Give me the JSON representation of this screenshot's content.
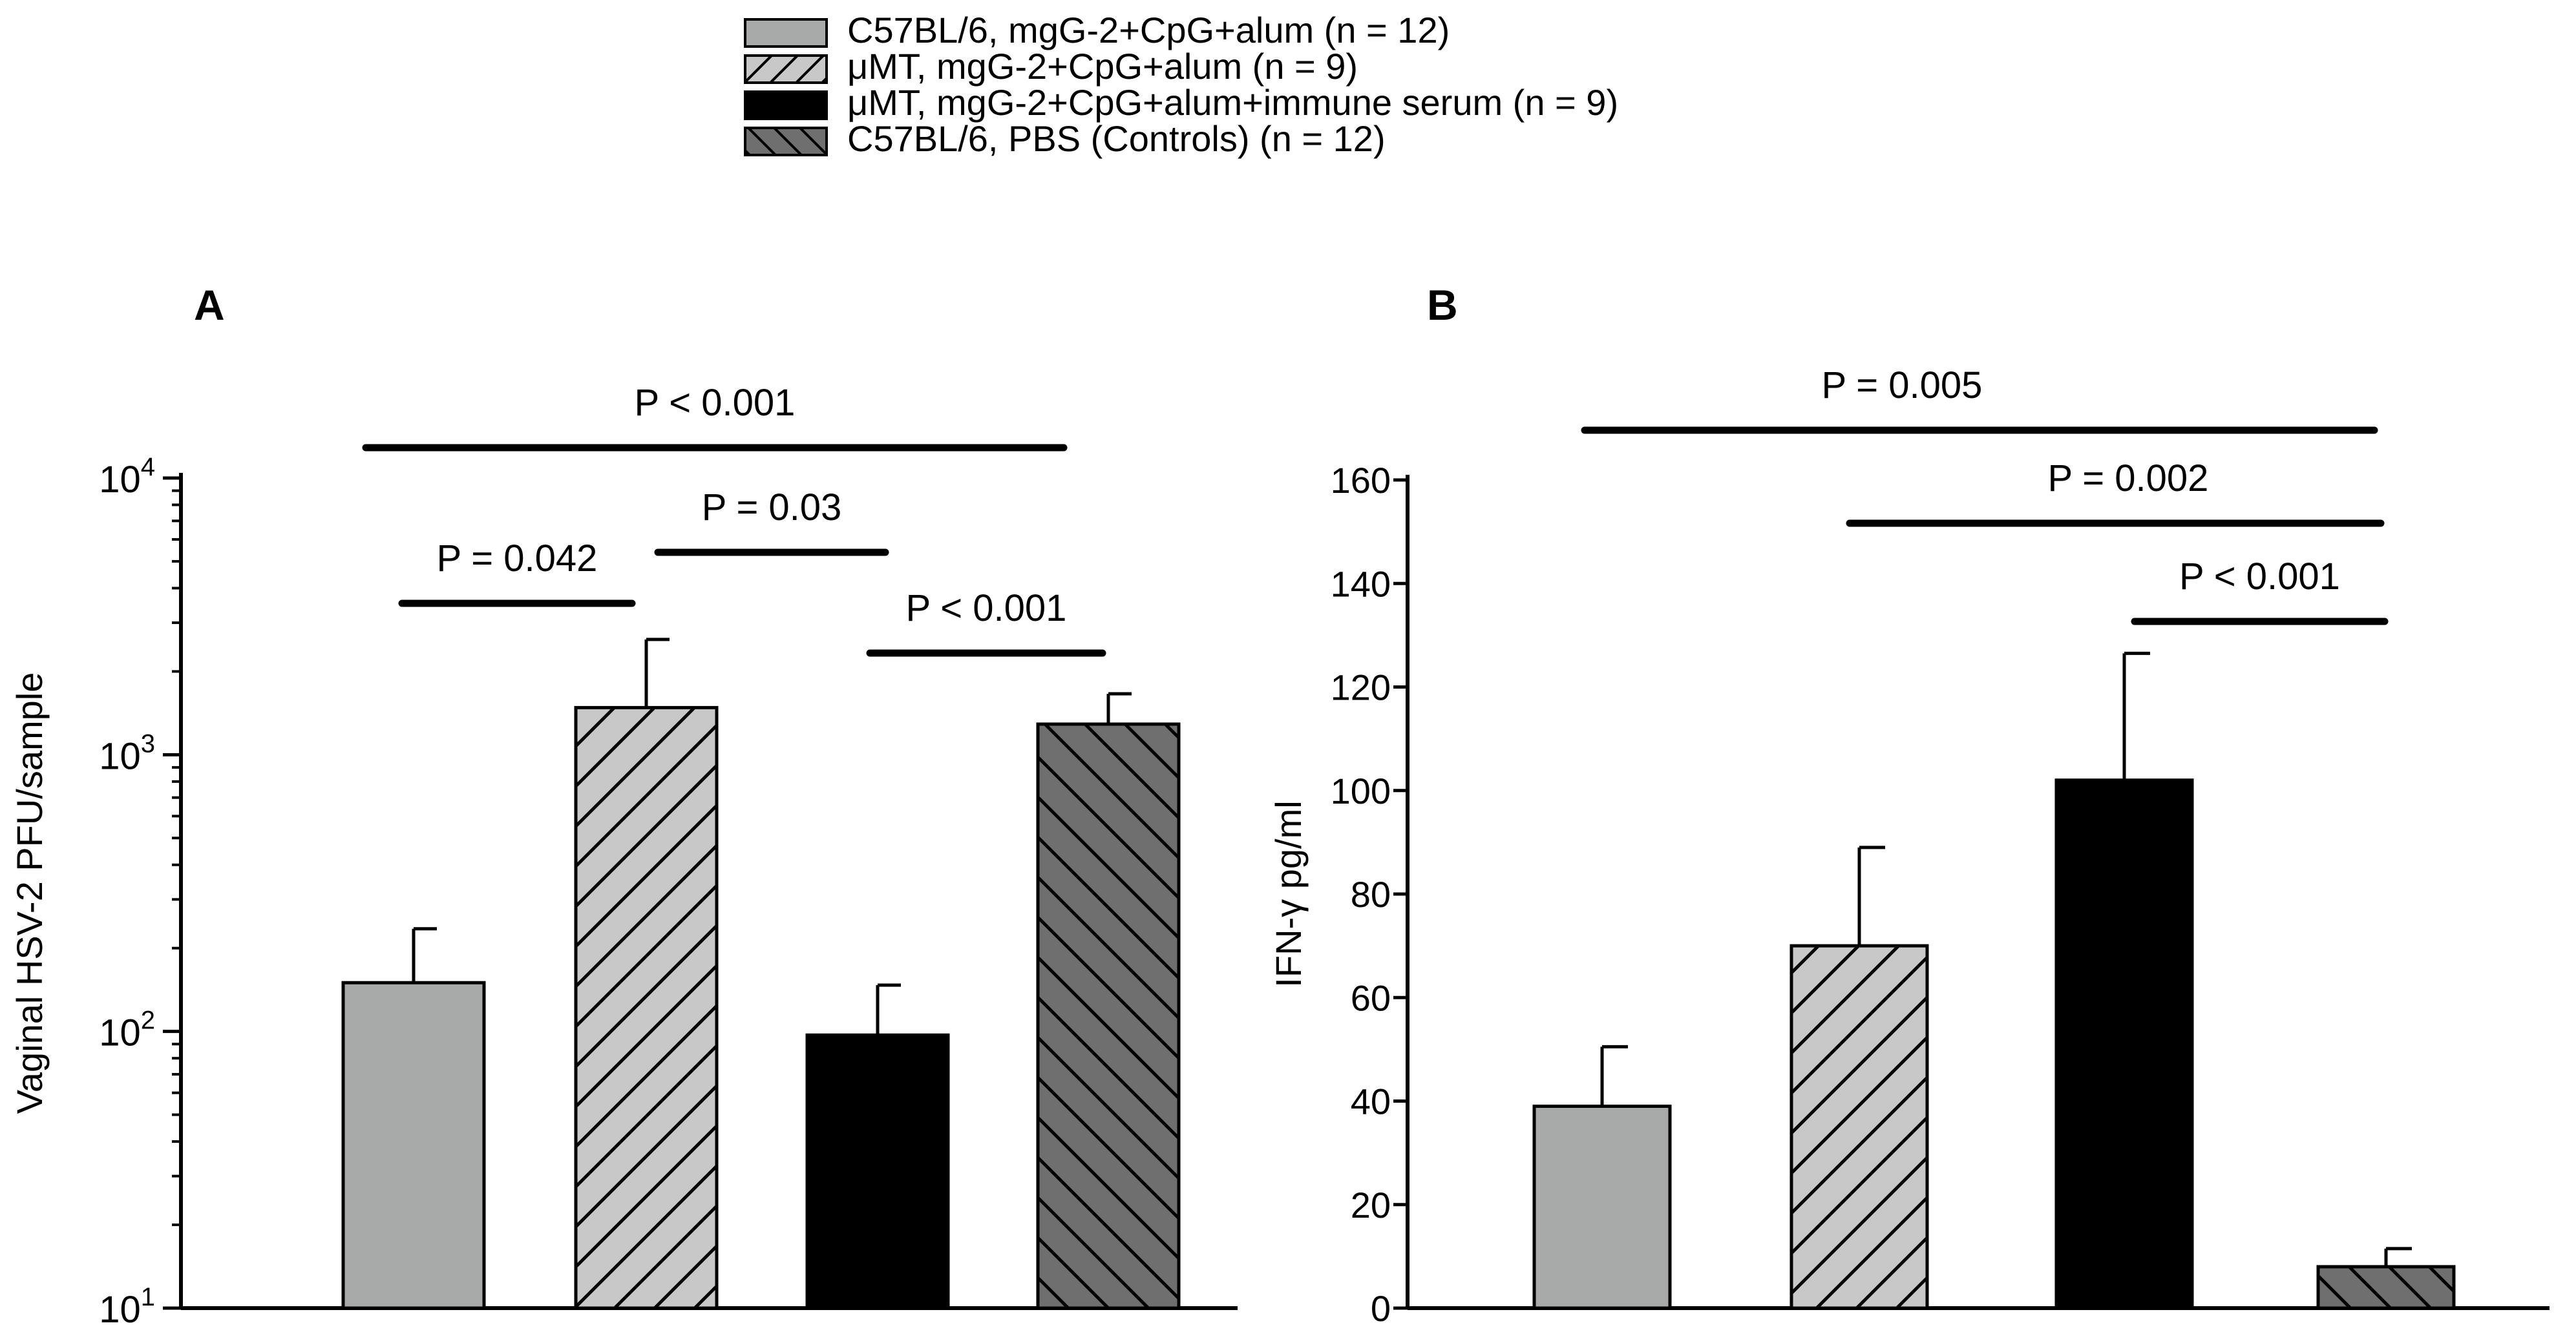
{
  "legend": [
    {
      "label": "C57BL/6, mgG-2+CpG+alum (n = 12)",
      "fill": "#a7aaa8",
      "pattern": "none"
    },
    {
      "label": "μMT, mgG-2+CpG+alum (n = 9)",
      "fill": "#c8c8c8",
      "pattern": "forward"
    },
    {
      "label": "μMT, mgG-2+CpG+alum+immune serum (n = 9)",
      "fill": "#000000",
      "pattern": "none"
    },
    {
      "label": "C57BL/6, PBS (Controls) (n = 12)",
      "fill": "#6f6f6f",
      "pattern": "back"
    }
  ],
  "chart_data": [
    {
      "panel": "A",
      "type": "bar",
      "yscale": "log",
      "ylabel": "Vaginal HSV-2 PFU/sample",
      "ylim": [
        10,
        10000
      ],
      "yticks": [
        {
          "value": 10,
          "base": "10",
          "exp": "1"
        },
        {
          "value": 100,
          "base": "10",
          "exp": "2"
        },
        {
          "value": 1000,
          "base": "10",
          "exp": "3"
        },
        {
          "value": 10000,
          "base": "10",
          "exp": "4"
        }
      ],
      "categories": [
        "C57BL/6, mgG-2+CpG+alum",
        "μMT, mgG-2+CpG+alum",
        "μMT, mgG-2+CpG+alum+immune serum",
        "C57BL/6, PBS (Controls)"
      ],
      "values": [
        150,
        1480,
        97,
        1290
      ],
      "errors": [
        85,
        1130,
        50,
        370
      ],
      "significance": [
        {
          "from": 0,
          "to": 3,
          "label": "P < 0.001"
        },
        {
          "from": 0,
          "to": 1,
          "label": "P = 0.042"
        },
        {
          "from": 1,
          "to": 2,
          "label": "P = 0.03"
        },
        {
          "from": 2,
          "to": 3,
          "label": "P < 0.001"
        }
      ]
    },
    {
      "panel": "B",
      "type": "bar",
      "yscale": "linear",
      "ylabel": "IFN-γ pg/ml",
      "ylim": [
        0,
        160
      ],
      "yticks": [
        0,
        20,
        40,
        60,
        80,
        100,
        120,
        140,
        160
      ],
      "categories": [
        "C57BL/6, mgG-2+CpG+alum",
        "μMT, mgG-2+CpG+alum",
        "μMT, mgG-2+CpG+alum+immune serum",
        "C57BL/6, PBS (Controls)"
      ],
      "values": [
        39,
        70,
        102,
        8
      ],
      "errors": [
        11.5,
        19,
        24.5,
        3.5
      ],
      "significance": [
        {
          "from": 0,
          "to": 3,
          "label": "P = 0.005"
        },
        {
          "from": 1,
          "to": 3,
          "label": "P = 0.002"
        },
        {
          "from": 2,
          "to": 3,
          "label": "P < 0.001"
        }
      ]
    }
  ]
}
